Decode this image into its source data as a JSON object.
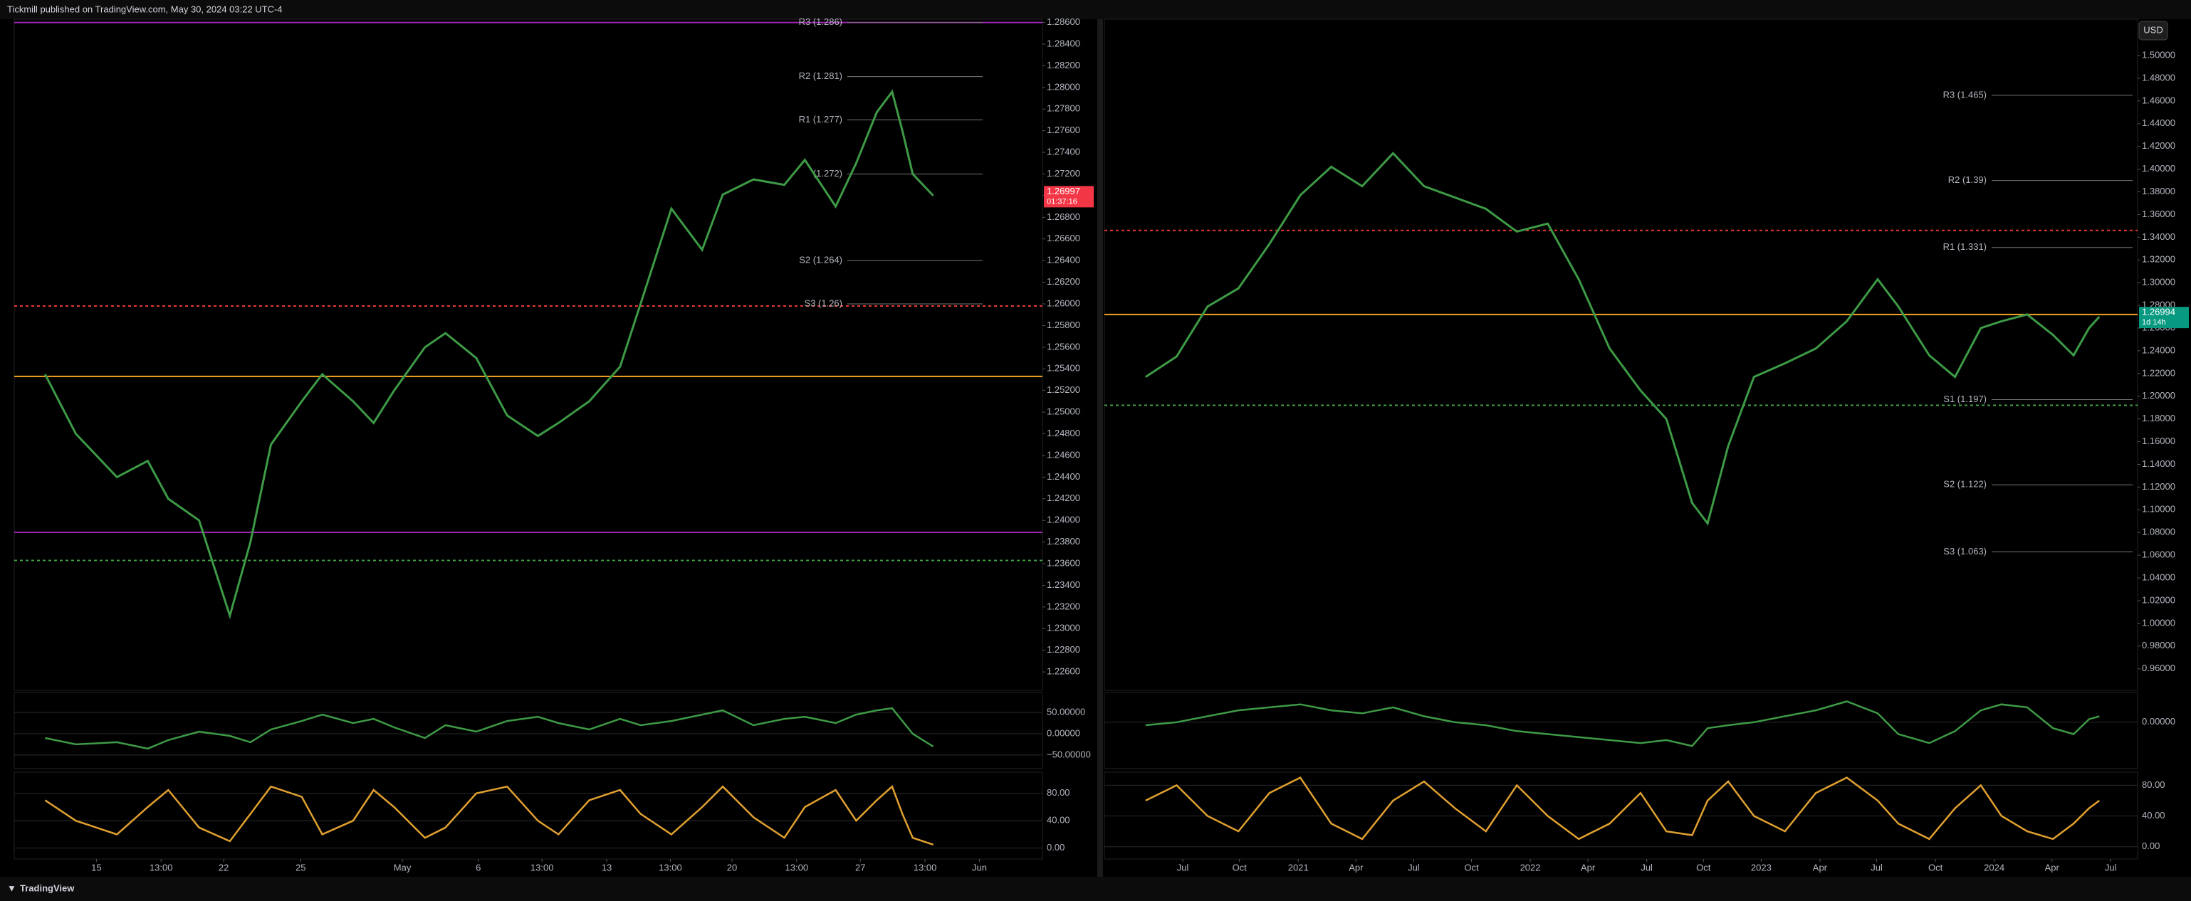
{
  "header": {
    "title": "Tickmill published on TradingView.com, May 30, 2024 03:22 UTC-4",
    "currency": "USD",
    "footer": "TradingView"
  },
  "chart_data": [
    {
      "type": "line",
      "xlim": [
        0,
        100
      ],
      "ylim": [
        1.2243,
        1.2863
      ],
      "x": [
        3,
        6,
        10,
        13,
        15,
        18,
        21,
        23,
        25,
        28,
        30,
        33,
        35,
        37,
        40,
        42,
        45,
        48,
        51,
        53,
        56,
        59,
        61,
        64,
        67,
        69,
        72,
        75,
        77,
        80,
        82,
        84,
        85.5,
        86.5,
        87.5,
        89.5
      ],
      "series": [
        {
          "color": "#3d9a46",
          "values": [
            1.2535,
            1.248,
            1.244,
            1.2455,
            1.242,
            1.24,
            1.2312,
            1.238,
            1.247,
            1.251,
            1.2535,
            1.251,
            1.249,
            1.252,
            1.256,
            1.2573,
            1.255,
            1.2497,
            1.2478,
            1.249,
            1.251,
            1.2542,
            1.26,
            1.2688,
            1.265,
            1.2701,
            1.2715,
            1.271,
            1.2733,
            1.269,
            1.273,
            1.2777,
            1.2796,
            1.276,
            1.272,
            1.27
          ]
        }
      ],
      "xticks": [
        {
          "value": 8.0,
          "label": "15"
        },
        {
          "value": 14.3,
          "label": "13:00"
        },
        {
          "value": 20.4,
          "label": "22"
        },
        {
          "value": 27.9,
          "label": "25"
        },
        {
          "value": 37.8,
          "label": "May"
        },
        {
          "value": 45.2,
          "label": "6"
        },
        {
          "value": 51.4,
          "label": "13:00"
        },
        {
          "value": 57.7,
          "label": "13"
        },
        {
          "value": 63.9,
          "label": "13:00"
        },
        {
          "value": 69.9,
          "label": "20"
        },
        {
          "value": 76.2,
          "label": "13:00"
        },
        {
          "value": 82.4,
          "label": "27"
        },
        {
          "value": 88.7,
          "label": "13:00"
        },
        {
          "value": 94.0,
          "label": "Jun"
        }
      ],
      "yticks": [
        {
          "value": 1.226,
          "label": "1.22600"
        },
        {
          "value": 1.228,
          "label": "1.22800"
        },
        {
          "value": 1.23,
          "label": "1.23000"
        },
        {
          "value": 1.232,
          "label": "1.23200"
        },
        {
          "value": 1.234,
          "label": "1.23400"
        },
        {
          "value": 1.236,
          "label": "1.23600"
        },
        {
          "value": 1.238,
          "label": "1.23800"
        },
        {
          "value": 1.24,
          "label": "1.24000"
        },
        {
          "value": 1.242,
          "label": "1.24200"
        },
        {
          "value": 1.244,
          "label": "1.24400"
        },
        {
          "value": 1.246,
          "label": "1.24600"
        },
        {
          "value": 1.248,
          "label": "1.24800"
        },
        {
          "value": 1.25,
          "label": "1.25000"
        },
        {
          "value": 1.252,
          "label": "1.25200"
        },
        {
          "value": 1.254,
          "label": "1.25400"
        },
        {
          "value": 1.256,
          "label": "1.25600"
        },
        {
          "value": 1.258,
          "label": "1.25800"
        },
        {
          "value": 1.26,
          "label": "1.26000"
        },
        {
          "value": 1.262,
          "label": "1.26200"
        },
        {
          "value": 1.264,
          "label": "1.26400"
        },
        {
          "value": 1.266,
          "label": "1.26600"
        },
        {
          "value": 1.268,
          "label": "1.26800"
        },
        {
          "value": 1.27,
          "label": "1.27000"
        },
        {
          "value": 1.272,
          "label": "1.27200"
        },
        {
          "value": 1.274,
          "label": "1.27400"
        },
        {
          "value": 1.276,
          "label": "1.27600"
        },
        {
          "value": 1.278,
          "label": "1.27800"
        },
        {
          "value": 1.28,
          "label": "1.28000"
        },
        {
          "value": 1.282,
          "label": "1.28200"
        },
        {
          "value": 1.284,
          "label": "1.28400"
        },
        {
          "value": 1.286,
          "label": "1.28600"
        }
      ],
      "pivots": [
        {
          "value": 1.286,
          "label": "R3 (1.286)"
        },
        {
          "value": 1.281,
          "label": "R2 (1.281)"
        },
        {
          "value": 1.277,
          "label": "R1 (1.277)"
        },
        {
          "value": 1.272,
          "label": "(1.272)"
        },
        {
          "value": 1.264,
          "label": "S2 (1.264)"
        },
        {
          "value": 1.26,
          "label": "S3 (1.26)"
        }
      ],
      "lines": [
        {
          "value": 1.2533,
          "color": "#f5a623",
          "dash": false
        },
        {
          "value": 1.2598,
          "color": "#e53935",
          "dash": true
        },
        {
          "value": 1.2363,
          "color": "#43a047",
          "dash": true
        },
        {
          "value": 1.2389,
          "color": "#9c27b0",
          "dash": false
        },
        {
          "value": 1.286,
          "color": "#9c27b0",
          "dash": false
        }
      ],
      "last_price": {
        "value": 1.26997,
        "label": "1.26997",
        "countdown": "01:37:16",
        "color": "#f23645"
      },
      "oscillators": [
        {
          "ylim": [
            -82,
            97
          ],
          "yticks": [
            {
              "value": 50,
              "label": "50.00000"
            },
            {
              "value": 0,
              "label": "0.00000"
            },
            {
              "value": -50,
              "label": "−50.00000"
            }
          ],
          "series": [
            {
              "color": "#3d9a46",
              "values": [
                -10,
                -25,
                -20,
                -35,
                -15,
                5,
                -5,
                -20,
                10,
                30,
                45,
                25,
                35,
                15,
                -10,
                20,
                5,
                30,
                40,
                25,
                10,
                35,
                20,
                30,
                45,
                55,
                20,
                35,
                40,
                25,
                45,
                55,
                60,
                30,
                0,
                -30
              ]
            }
          ]
        },
        {
          "ylim": [
            -16,
            111
          ],
          "yticks": [
            {
              "value": 80,
              "label": "80.00"
            },
            {
              "value": 40,
              "label": "40.00"
            },
            {
              "value": 0,
              "label": "0.00"
            }
          ],
          "series": [
            {
              "color": "#e0a030",
              "values": [
                70,
                40,
                20,
                60,
                85,
                30,
                10,
                50,
                90,
                75,
                20,
                40,
                85,
                60,
                15,
                30,
                80,
                90,
                40,
                20,
                70,
                85,
                50,
                20,
                60,
                90,
                45,
                15,
                60,
                85,
                40,
                70,
                90,
                50,
                15,
                5
              ]
            }
          ]
        }
      ]
    },
    {
      "type": "line",
      "xlim": [
        0,
        100
      ],
      "ylim": [
        0.941,
        1.532
      ],
      "x": [
        4,
        7,
        10,
        13,
        16,
        19,
        22,
        25,
        28,
        31,
        34,
        37,
        40,
        43,
        46,
        49,
        52,
        54.5,
        57,
        58.5,
        60.5,
        63,
        66,
        69,
        72,
        75,
        77,
        80,
        82.5,
        85,
        87,
        89.5,
        92,
        94,
        95.5,
        96.5
      ],
      "series": [
        {
          "color": "#3d9a46",
          "values": [
            1.217,
            1.235,
            1.279,
            1.295,
            1.334,
            1.377,
            1.402,
            1.385,
            1.414,
            1.385,
            1.375,
            1.365,
            1.345,
            1.352,
            1.303,
            1.242,
            1.205,
            1.18,
            1.106,
            1.088,
            1.156,
            1.217,
            1.229,
            1.242,
            1.266,
            1.303,
            1.279,
            1.236,
            1.217,
            1.26,
            1.266,
            1.272,
            1.254,
            1.236,
            1.26,
            1.27
          ]
        }
      ],
      "xticks": [
        {
          "value": 7.6,
          "label": "Jul"
        },
        {
          "value": 13.1,
          "label": "Oct"
        },
        {
          "value": 18.8,
          "label": "2021"
        },
        {
          "value": 24.4,
          "label": "Apr"
        },
        {
          "value": 30.0,
          "label": "Jul"
        },
        {
          "value": 35.6,
          "label": "Oct"
        },
        {
          "value": 41.3,
          "label": "2022"
        },
        {
          "value": 46.9,
          "label": "Apr"
        },
        {
          "value": 52.6,
          "label": "Jul"
        },
        {
          "value": 58.1,
          "label": "Oct"
        },
        {
          "value": 63.7,
          "label": "2023"
        },
        {
          "value": 69.4,
          "label": "Apr"
        },
        {
          "value": 74.9,
          "label": "Jul"
        },
        {
          "value": 80.6,
          "label": "Oct"
        },
        {
          "value": 86.3,
          "label": "2024"
        },
        {
          "value": 91.9,
          "label": "Apr"
        },
        {
          "value": 97.6,
          "label": "Jul"
        }
      ],
      "yticks": [
        {
          "value": 0.96,
          "label": "0.96000"
        },
        {
          "value": 0.98,
          "label": "0.98000"
        },
        {
          "value": 1,
          "label": "1.00000"
        },
        {
          "value": 1.02,
          "label": "1.02000"
        },
        {
          "value": 1.04,
          "label": "1.04000"
        },
        {
          "value": 1.06,
          "label": "1.06000"
        },
        {
          "value": 1.08,
          "label": "1.08000"
        },
        {
          "value": 1.1,
          "label": "1.10000"
        },
        {
          "value": 1.12,
          "label": "1.12000"
        },
        {
          "value": 1.14,
          "label": "1.14000"
        },
        {
          "value": 1.16,
          "label": "1.16000"
        },
        {
          "value": 1.18,
          "label": "1.18000"
        },
        {
          "value": 1.2,
          "label": "1.20000"
        },
        {
          "value": 1.22,
          "label": "1.22000"
        },
        {
          "value": 1.24,
          "label": "1.24000"
        },
        {
          "value": 1.26,
          "label": "1.26000"
        },
        {
          "value": 1.28,
          "label": "1.28000"
        },
        {
          "value": 1.3,
          "label": "1.30000"
        },
        {
          "value": 1.32,
          "label": "1.32000"
        },
        {
          "value": 1.34,
          "label": "1.34000"
        },
        {
          "value": 1.36,
          "label": "1.36000"
        },
        {
          "value": 1.38,
          "label": "1.38000"
        },
        {
          "value": 1.4,
          "label": "1.40000"
        },
        {
          "value": 1.42,
          "label": "1.42000"
        },
        {
          "value": 1.44,
          "label": "1.44000"
        },
        {
          "value": 1.46,
          "label": "1.46000"
        },
        {
          "value": 1.48,
          "label": "1.48000"
        },
        {
          "value": 1.5,
          "label": "1.50000"
        }
      ],
      "pivots": [
        {
          "value": 1.465,
          "label": "R3 (1.465)"
        },
        {
          "value": 1.39,
          "label": "R2 (1.39)"
        },
        {
          "value": 1.331,
          "label": "R1 (1.331)"
        },
        {
          "value": 1.197,
          "label": "S1 (1.197)"
        },
        {
          "value": 1.122,
          "label": "S2 (1.122)"
        },
        {
          "value": 1.063,
          "label": "S3 (1.063)"
        }
      ],
      "lines": [
        {
          "value": 1.272,
          "color": "#f5a623",
          "dash": false
        },
        {
          "value": 1.346,
          "color": "#e53935",
          "dash": true
        },
        {
          "value": 1.192,
          "color": "#43a047",
          "dash": true
        }
      ],
      "last_price": {
        "value": 1.26994,
        "label": "1.26994",
        "countdown": "1d 14h",
        "color": "#089981"
      },
      "oscillators": [
        {
          "ylim": [
            -78,
            50
          ],
          "yticks": [
            {
              "value": 0,
              "label": "0.00000"
            }
          ],
          "series": [
            {
              "color": "#3d9a46",
              "values": [
                -5,
                0,
                10,
                20,
                25,
                30,
                20,
                15,
                25,
                10,
                0,
                -5,
                -15,
                -20,
                -25,
                -30,
                -35,
                -30,
                -40,
                -10,
                -5,
                0,
                10,
                20,
                35,
                15,
                -20,
                -35,
                -15,
                20,
                30,
                25,
                -10,
                -20,
                5,
                10
              ]
            }
          ]
        },
        {
          "ylim": [
            -16,
            97
          ],
          "yticks": [
            {
              "value": 80,
              "label": "80.00"
            },
            {
              "value": 40,
              "label": "40.00"
            },
            {
              "value": 0,
              "label": "0.00"
            }
          ],
          "series": [
            {
              "color": "#e0a030",
              "values": [
                60,
                80,
                40,
                20,
                70,
                90,
                30,
                10,
                60,
                85,
                50,
                20,
                80,
                40,
                10,
                30,
                70,
                20,
                15,
                60,
                85,
                40,
                20,
                70,
                90,
                60,
                30,
                10,
                50,
                80,
                40,
                20,
                10,
                30,
                50,
                60
              ]
            }
          ]
        }
      ]
    }
  ]
}
